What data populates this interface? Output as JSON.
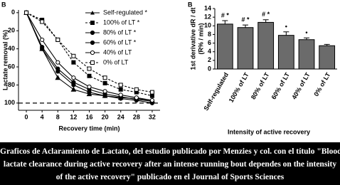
{
  "chart_data": [
    {
      "type": "line",
      "panel_label": "B",
      "y_label": "Lactate removal (%)",
      "x_label": "Recovery time (min)",
      "x": [
        0,
        4,
        8,
        12,
        16,
        20,
        24,
        28,
        32
      ],
      "xlim": [
        -2,
        34
      ],
      "xticks": [
        0,
        4,
        8,
        12,
        16,
        20,
        24,
        28,
        32
      ],
      "ylim": [
        -3,
        108
      ],
      "yticks": [
        0,
        20,
        40,
        60,
        80,
        100
      ],
      "y_inverted": true,
      "hline": 100,
      "legend": "upper right",
      "series": [
        {
          "name": "Self-regulated *",
          "color": "#000",
          "marker": "triangle",
          "dashed": false,
          "values": [
            0,
            40,
            72,
            85,
            90,
            92,
            94,
            95,
            97
          ]
        },
        {
          "name": "100% of LT *",
          "color": "#000",
          "marker": "square",
          "dashed": true,
          "values": [
            0,
            8,
            30,
            55,
            70,
            78,
            85,
            88,
            92
          ]
        },
        {
          "name": "80% of LT *",
          "color": "#000",
          "marker": "circle",
          "dashed": false,
          "values": [
            0,
            40,
            65,
            80,
            88,
            92,
            95,
            97,
            100
          ]
        },
        {
          "name": "60% of LT *",
          "color": "#000",
          "marker": "circle",
          "dashed": false,
          "values": [
            0,
            38,
            62,
            77,
            85,
            90,
            93,
            96,
            98
          ]
        },
        {
          "name": "40% of LT",
          "color": "#000",
          "marker": "circle-open",
          "dashed": false,
          "values": [
            0,
            30,
            55,
            72,
            82,
            87,
            91,
            94,
            97
          ]
        },
        {
          "name": "0% of LT",
          "color": "#000",
          "marker": "square-open",
          "dashed": true,
          "values": [
            0,
            10,
            30,
            48,
            62,
            72,
            80,
            85,
            88
          ]
        }
      ]
    },
    {
      "type": "bar",
      "panel_label": "B",
      "y_label": "1st derivative dR / dt",
      "y_label_2": "(R% / min)",
      "x_label": "Intensity of active recovery",
      "categories": [
        "Self-regulated",
        "100% of LT",
        "80% of LT",
        "60% of LT",
        "40% of LT",
        "0% of LT"
      ],
      "values": [
        10.4,
        9.6,
        10.8,
        7.8,
        6.8,
        5.4
      ],
      "errors": [
        0.8,
        0.6,
        0.6,
        0.8,
        0.4,
        0.3
      ],
      "annotations": [
        "# *",
        "# *",
        "# *",
        "•",
        "•",
        null
      ],
      "color": "#6b6b6b",
      "ylim": [
        0,
        14
      ],
      "yticks": [
        0,
        2,
        4,
        6,
        8,
        10,
        12,
        14
      ]
    }
  ],
  "caption": [
    "Graficos de Aclaramiento de Lactato, del estudio publicado por Menzies y col. con el título \"Blood",
    "lactate clearance during active recovery after an intense running bout dependes on the intensity",
    "of the active recovery\" publicado en el Journal of Sports Sciences"
  ]
}
